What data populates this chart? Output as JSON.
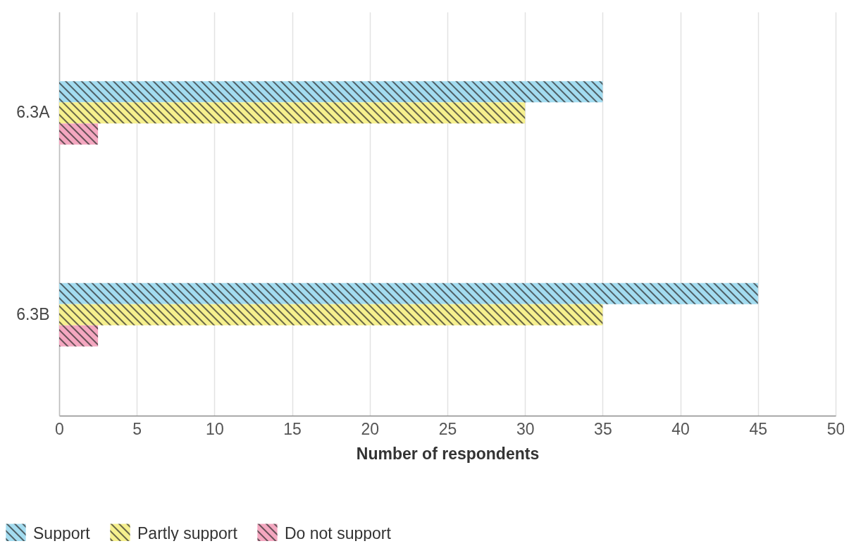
{
  "chart_data": {
    "type": "bar",
    "orientation": "horizontal",
    "categories": [
      "6.3A",
      "6.3B"
    ],
    "series": [
      {
        "name": "Support",
        "color": "#a3dcf0",
        "values": [
          35,
          45
        ]
      },
      {
        "name": "Partly support",
        "color": "#f6f08e",
        "values": [
          30,
          35
        ]
      },
      {
        "name": "Do not support",
        "color": "#f4a7c0",
        "values": [
          2.5,
          2.5
        ]
      }
    ],
    "xlabel": "Number of respondents",
    "xlim": [
      0,
      50
    ],
    "xticks": [
      0,
      5,
      10,
      15,
      20,
      25,
      30,
      35,
      40,
      45,
      50
    ],
    "grid": "x",
    "legend": "bottom left"
  }
}
